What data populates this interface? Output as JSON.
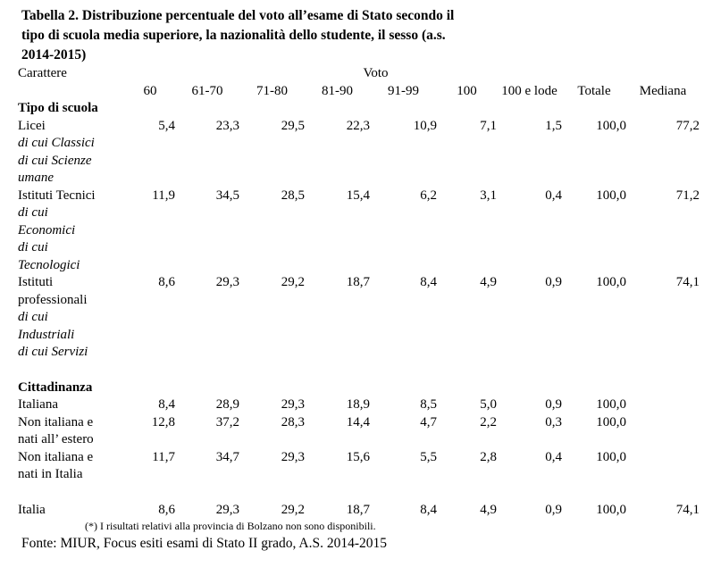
{
  "title": "Tabella 2. Distribuzione percentuale del voto all’esame di Stato secondo il\ntipo di scuola media superiore, la nazionalità dello studente, il sesso (a.s.\n2014-2015)",
  "table": {
    "corner_label": "Carattere",
    "group_header": "Voto",
    "columns": [
      "60",
      "61-70",
      "71-80",
      "81-90",
      "91-99",
      "100",
      "100 e lode",
      "Totale",
      "Mediana"
    ],
    "sections": [
      {
        "heading": "Tipo di scuola",
        "rows": [
          {
            "label": "Licei",
            "italic": false,
            "values": [
              "5,4",
              "23,3",
              "29,5",
              "22,3",
              "10,9",
              "7,1",
              "1,5",
              "100,0",
              "77,2"
            ]
          },
          {
            "label": "di cui Classici",
            "italic": true,
            "values": [
              "",
              "",
              "",
              "",
              "",
              "",
              "",
              "",
              ""
            ]
          },
          {
            "label": "di cui Scienze\numane",
            "italic": true,
            "values": [
              "",
              "",
              "",
              "",
              "",
              "",
              "",
              "",
              ""
            ]
          },
          {
            "label": "Istituti Tecnici",
            "italic": false,
            "values": [
              "11,9",
              "34,5",
              "28,5",
              "15,4",
              "6,2",
              "3,1",
              "0,4",
              "100,0",
              "71,2"
            ]
          },
          {
            "label": "di cui\nEconomici",
            "italic": true,
            "values": [
              "",
              "",
              "",
              "",
              "",
              "",
              "",
              "",
              ""
            ]
          },
          {
            "label": "di cui\nTecnologici",
            "italic": true,
            "values": [
              "",
              "",
              "",
              "",
              "",
              "",
              "",
              "",
              ""
            ]
          },
          {
            "label": "Istituti\nprofessionali",
            "italic": false,
            "values": [
              "8,6",
              "29,3",
              "29,2",
              "18,7",
              "8,4",
              "4,9",
              "0,9",
              "100,0",
              "74,1"
            ]
          },
          {
            "label": "di cui\nIndustriali",
            "italic": true,
            "values": [
              "",
              "",
              "",
              "",
              "",
              "",
              "",
              "",
              ""
            ]
          },
          {
            "label": "di cui Servizi",
            "italic": true,
            "values": [
              "",
              "",
              "",
              "",
              "",
              "",
              "",
              "",
              ""
            ]
          }
        ]
      },
      {
        "heading": "Cittadinanza",
        "rows": [
          {
            "label": "Italiana",
            "italic": false,
            "values": [
              "8,4",
              "28,9",
              "29,3",
              "18,9",
              "8,5",
              "5,0",
              "0,9",
              "100,0",
              ""
            ]
          },
          {
            "label": "Non italiana e\nnati all’ estero",
            "italic": false,
            "values": [
              "12,8",
              "37,2",
              "28,3",
              "14,4",
              "4,7",
              "2,2",
              "0,3",
              "100,0",
              ""
            ]
          },
          {
            "label": "Non italiana e\nnati in Italia",
            "italic": false,
            "values": [
              "11,7",
              "34,7",
              "29,3",
              "15,6",
              "5,5",
              "2,8",
              "0,4",
              "100,0",
              ""
            ]
          }
        ]
      },
      {
        "heading": "",
        "rows": [
          {
            "label": "Italia",
            "italic": false,
            "values": [
              "8,6",
              "29,3",
              "29,2",
              "18,7",
              "8,4",
              "4,9",
              "0,9",
              "100,0",
              "74,1"
            ]
          }
        ]
      }
    ]
  },
  "footnote": "(*) I risultati relativi alla provincia di Bolzano non sono disponibili.",
  "source": "Fonte: MIUR, Focus esiti esami di Stato II grado, A.S. 2014-2015"
}
